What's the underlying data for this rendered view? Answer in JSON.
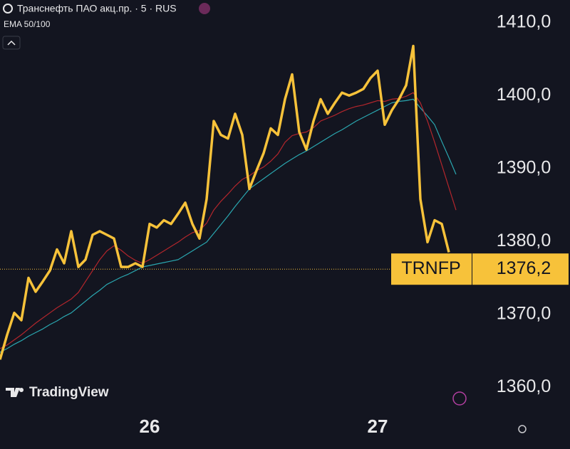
{
  "chart_data": {
    "type": "line",
    "title": "Транснефть ПАО акц.пр. · 5 · RUS",
    "indicator": "EMA 50/100",
    "watermark": "TradingView",
    "categories": [
      null,
      null,
      null,
      null,
      null,
      null,
      null,
      null,
      null,
      null,
      null,
      null,
      null,
      null,
      null,
      null,
      null,
      null,
      null,
      null,
      null,
      "26",
      null,
      null,
      null,
      null,
      null,
      null,
      null,
      null,
      null,
      null,
      null,
      null,
      null,
      null,
      null,
      null,
      null,
      null,
      null,
      null,
      null,
      null,
      null,
      null,
      null,
      null,
      null,
      null,
      null,
      null,
      null,
      "27",
      null,
      null,
      null,
      null,
      null,
      null,
      null,
      null,
      null,
      null,
      null
    ],
    "series": [
      {
        "color": "#f7c23a",
        "values": [
          1363.8,
          1367.2,
          1370.2,
          1369.2,
          1375.0,
          1373.1,
          1374.5,
          1376.0,
          1378.9,
          1377.0,
          1381.4,
          1376.5,
          1377.5,
          1380.9,
          1381.4,
          1380.9,
          1380.4,
          1376.5,
          1376.5,
          1377.0,
          1376.5,
          1382.4,
          1381.9,
          1382.9,
          1382.4,
          1383.8,
          1385.3,
          1382.4,
          1380.4,
          1385.8,
          1396.5,
          1394.6,
          1394.1,
          1397.5,
          1394.6,
          1387.2,
          1389.7,
          1392.1,
          1395.5,
          1394.6,
          1399.5,
          1402.9,
          1395.0,
          1392.6,
          1396.5,
          1399.5,
          1397.5,
          1399.0,
          1400.4,
          1400.0,
          1400.4,
          1400.9,
          1402.4,
          1403.4,
          1396.0,
          1398.0,
          1399.5,
          1401.4,
          1406.8,
          1385.8,
          1379.9,
          1382.9,
          1382.4,
          1378.5,
          null
        ]
      },
      {
        "color": "#b3262c",
        "values": [
          1365.3,
          1365.8,
          1366.5,
          1367.2,
          1368.0,
          1368.8,
          1369.5,
          1370.2,
          1370.9,
          1371.5,
          1372.1,
          1373.0,
          1374.5,
          1376.0,
          1377.5,
          1378.7,
          1379.4,
          1378.8,
          1378.0,
          1377.4,
          1377.0,
          1377.5,
          1378.1,
          1378.7,
          1379.3,
          1379.9,
          1380.6,
          1381.2,
          1381.5,
          1382.5,
          1384.3,
          1385.5,
          1386.5,
          1387.6,
          1388.5,
          1389.0,
          1389.7,
          1390.2,
          1391.0,
          1392.0,
          1393.6,
          1394.5,
          1394.8,
          1395.0,
          1395.6,
          1396.5,
          1396.9,
          1397.3,
          1397.8,
          1398.2,
          1398.5,
          1398.7,
          1399.0,
          1399.3,
          1399.2,
          1399.5,
          1399.6,
          1399.9,
          1400.4,
          1399.0,
          1396.5,
          1393.6,
          1390.5,
          1387.4,
          1384.3
        ]
      },
      {
        "color": "#2aa7b0",
        "values": [
          1364.8,
          1365.3,
          1365.9,
          1366.4,
          1367.0,
          1367.5,
          1368.0,
          1368.6,
          1369.1,
          1369.7,
          1370.2,
          1371.0,
          1371.8,
          1372.6,
          1373.3,
          1374.1,
          1374.6,
          1375.1,
          1375.5,
          1376.0,
          1376.5,
          1376.7,
          1376.9,
          1377.1,
          1377.3,
          1377.5,
          1378.1,
          1378.7,
          1379.3,
          1379.9,
          1381.1,
          1382.3,
          1383.5,
          1384.8,
          1386.0,
          1387.2,
          1387.9,
          1388.6,
          1389.3,
          1390.0,
          1390.7,
          1391.3,
          1391.9,
          1392.4,
          1393.0,
          1393.6,
          1394.2,
          1394.8,
          1395.3,
          1395.9,
          1396.5,
          1397.0,
          1397.5,
          1398.0,
          1398.5,
          1399.0,
          1399.2,
          1399.3,
          1399.5,
          1398.3,
          1397.2,
          1396.0,
          1393.7,
          1391.5,
          1389.2
        ]
      }
    ],
    "ylim": [
      1357,
      1413.1
    ],
    "yticks": [
      {
        "value": 1410,
        "label": "1410,0"
      },
      {
        "value": 1400,
        "label": "1400,0"
      },
      {
        "value": 1390,
        "label": "1390,0"
      },
      {
        "value": 1380,
        "label": "1380,0"
      },
      {
        "value": 1370,
        "label": "1370,0"
      },
      {
        "value": 1360,
        "label": "1360,0"
      }
    ],
    "price_tag": {
      "symbol": "TRNFP",
      "price": {
        "value": 1376.2,
        "label": "1376,2"
      }
    }
  }
}
